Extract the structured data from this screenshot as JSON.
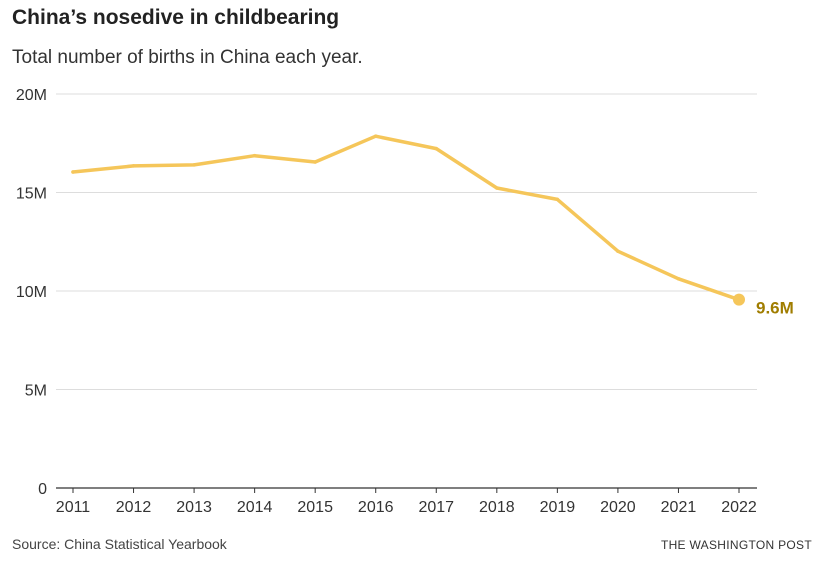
{
  "title": "China’s nosedive in childbearing",
  "subtitle": "Total number of births in China each year.",
  "source": "Source: China Statistical Yearbook",
  "credit": "THE WASHINGTON POST",
  "colors": {
    "line": "#f5c65a",
    "label": "#a07d00",
    "grid": "#dddddd",
    "axis": "#333333"
  },
  "chart_data": {
    "type": "line",
    "x": [
      2011,
      2012,
      2013,
      2014,
      2015,
      2016,
      2017,
      2018,
      2019,
      2020,
      2021,
      2022
    ],
    "series": [
      {
        "values": [
          16.04,
          16.35,
          16.4,
          16.87,
          16.55,
          17.86,
          17.23,
          15.23,
          14.65,
          12.02,
          10.62,
          9.56
        ]
      }
    ],
    "ylim": [
      0,
      20
    ],
    "yticks": [
      0,
      5,
      10,
      15,
      20
    ],
    "ytick_labels": [
      "0",
      "5M",
      "10M",
      "15M",
      "20M"
    ],
    "xtick_labels": [
      "2011",
      "2012",
      "2013",
      "2014",
      "2015",
      "2016",
      "2017",
      "2018",
      "2019",
      "2020",
      "2021",
      "2022"
    ],
    "end_label": "9.6M",
    "grid": true,
    "xlabel": "",
    "ylabel": ""
  }
}
